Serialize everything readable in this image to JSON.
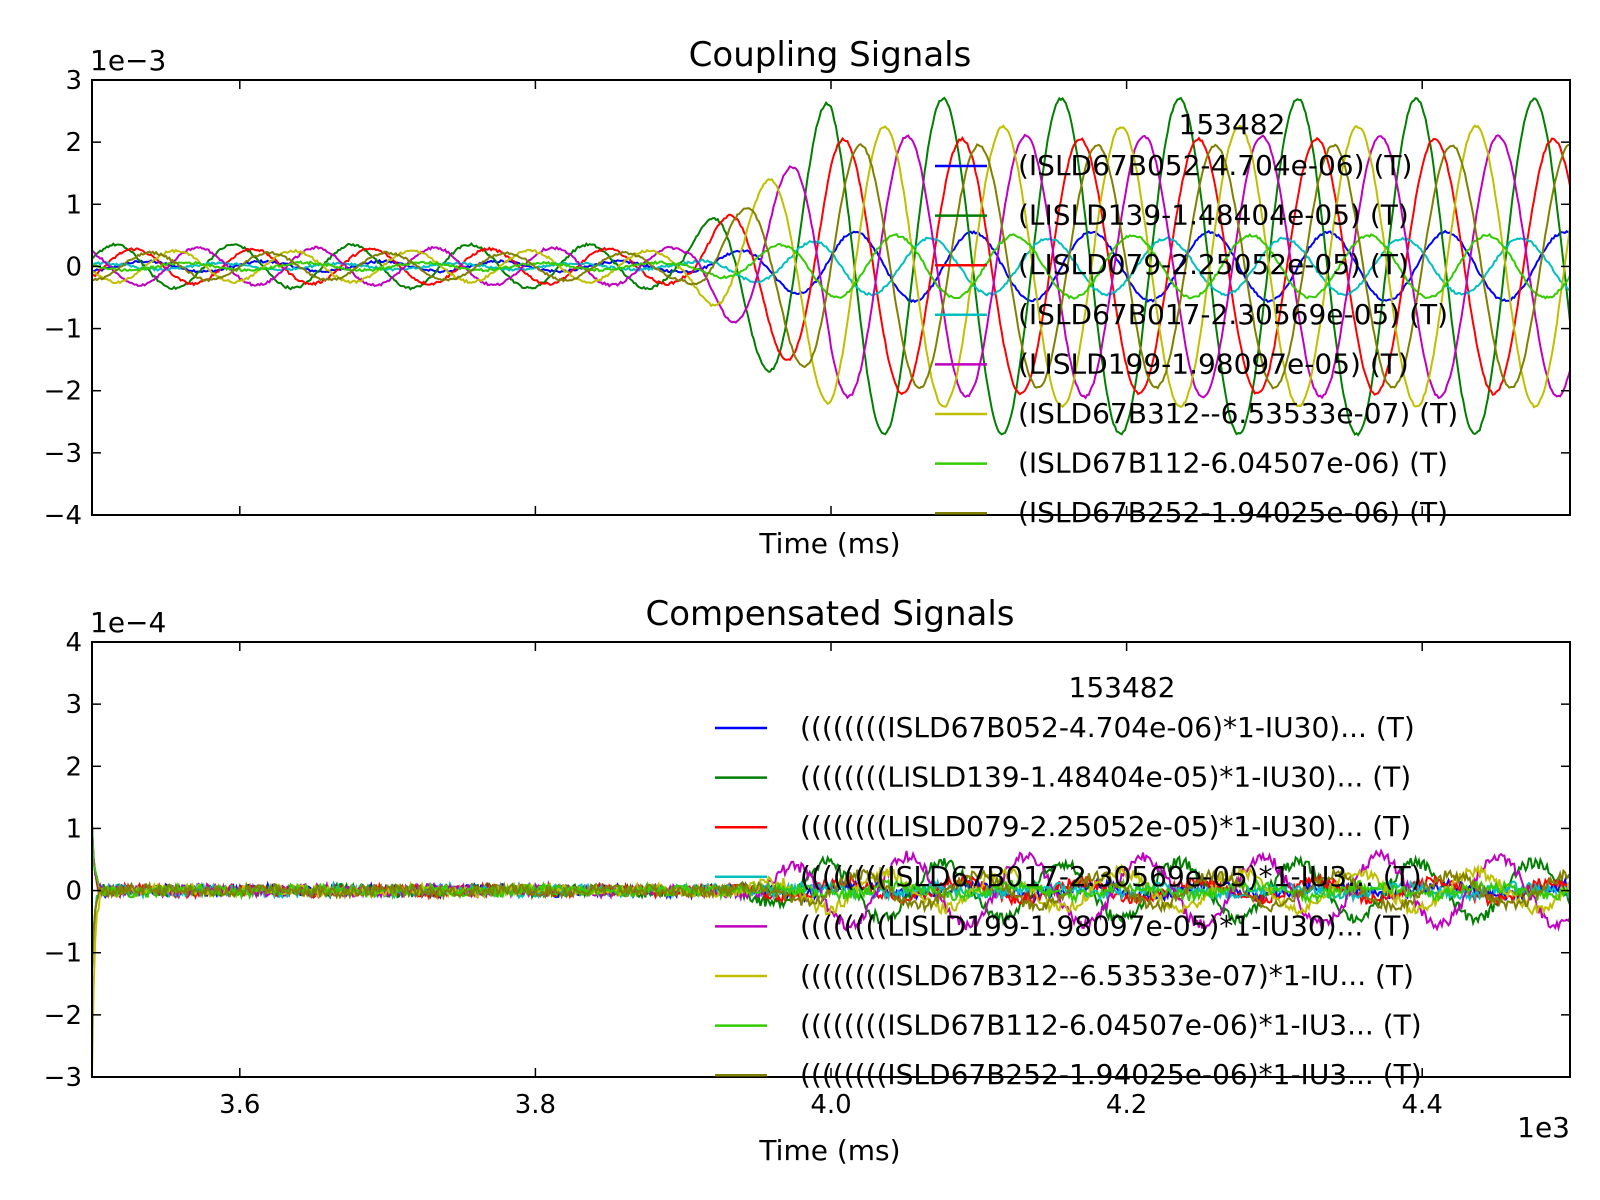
{
  "colors": {
    "blue": "#0000ff",
    "green": "#007f00",
    "red": "#ff0000",
    "cyan": "#00bfbf",
    "magenta": "#bf00bf",
    "yellow": "#bfbf00",
    "lightgreen": "#33cc00",
    "olive": "#808000"
  },
  "chart_data": [
    {
      "type": "line",
      "title": "Coupling Signals",
      "xlabel": "Time (ms)",
      "ylabel": "",
      "y_offset_label": "1e−3",
      "y_scale": 0.001,
      "xlim": [
        3500,
        4500
      ],
      "ylim": [
        -4,
        3
      ],
      "yticks": [
        3,
        2,
        1,
        0,
        -1,
        -2,
        -3,
        -4
      ],
      "ytick_labels": [
        "3",
        "2",
        "1",
        "0",
        "−1",
        "−2",
        "−3",
        "−4"
      ],
      "xticks": [
        3600,
        3800,
        4000,
        4200,
        4400
      ],
      "legend_title": "153482",
      "legend_position": "upper-right",
      "series": [
        {
          "name": "(ISLD67B052-4.704e-06) (T)",
          "color": "blue",
          "amp_pre": 0.08,
          "amp_post": 0.55,
          "period": 80,
          "phase": 0.3
        },
        {
          "name": "(LISLD139-1.48404e-05) (T)",
          "color": "green",
          "amp_pre": 0.35,
          "amp_post": 2.7,
          "period": 80,
          "phase": 1.9
        },
        {
          "name": "(LISLD079-2.25052e-05) (T)",
          "color": "red",
          "amp_pre": 0.28,
          "amp_post": 2.05,
          "period": 80,
          "phase": 0.9
        },
        {
          "name": "(ISLD67B017-2.30569e-05) (T)",
          "color": "cyan",
          "amp_pre": 0.05,
          "amp_post": 0.45,
          "period": 80,
          "phase": 2.6
        },
        {
          "name": "(LISLD199-1.98097e-05) (T)",
          "color": "magenta",
          "amp_pre": 0.3,
          "amp_post": 2.1,
          "period": 80,
          "phase": 3.8
        },
        {
          "name": "(ISLD67B312--6.53533e-07) (T)",
          "color": "yellow",
          "amp_pre": 0.25,
          "amp_post": 2.25,
          "period": 80,
          "phase": 5.0
        },
        {
          "name": "(ISLD67B112-6.04507e-06) (T)",
          "color": "lightgreen",
          "amp_pre": 0.06,
          "amp_post": 0.5,
          "period": 80,
          "phase": 4.4
        },
        {
          "name": "(ISLD67B252-1.94025e-06) (T)",
          "color": "olive",
          "amp_pre": 0.22,
          "amp_post": 1.95,
          "period": 80,
          "phase": 0.0
        }
      ]
    },
    {
      "type": "line",
      "title": "Compensated Signals",
      "xlabel": "Time (ms)",
      "ylabel": "",
      "y_offset_label": "1e−4",
      "x_offset_label": "1e3",
      "y_scale": 0.0001,
      "xlim": [
        3500,
        4500
      ],
      "ylim": [
        -3,
        4
      ],
      "yticks": [
        4,
        3,
        2,
        1,
        0,
        -1,
        -2,
        -3
      ],
      "ytick_labels": [
        "4",
        "3",
        "2",
        "1",
        "0",
        "−1",
        "−2",
        "−3"
      ],
      "xticks": [
        3600,
        3800,
        4000,
        4200,
        4400
      ],
      "xtick_labels": [
        "3.6",
        "3.8",
        "4.0",
        "4.2",
        "4.4"
      ],
      "legend_title": "153482",
      "legend_position": "upper-right",
      "series": [
        {
          "name": "((((((((ISLD67B052-4.704e-06)*1-IU30)... (T)",
          "color": "blue",
          "amp_post": 0.08,
          "period": 80,
          "phase": 0.3
        },
        {
          "name": "((((((((LISLD139-1.48404e-05)*1-IU30)... (T)",
          "color": "green",
          "amp_post": 0.45,
          "period": 80,
          "phase": 1.9
        },
        {
          "name": "((((((((LISLD079-2.25052e-05)*1-IU30)... (T)",
          "color": "red",
          "amp_post": 0.15,
          "period": 80,
          "phase": 0.9
        },
        {
          "name": "((((((((ISLD67B017-2.30569e-05)*1-IU3... (T)",
          "color": "cyan",
          "amp_post": 0.06,
          "period": 80,
          "phase": 2.6
        },
        {
          "name": "((((((((LISLD199-1.98097e-05)*1-IU30)... (T)",
          "color": "magenta",
          "amp_post": 0.55,
          "period": 80,
          "phase": 3.8
        },
        {
          "name": "((((((((ISLD67B312--6.53533e-07)*1-IU... (T)",
          "color": "yellow",
          "amp_post": 0.3,
          "period": 80,
          "phase": 5.0
        },
        {
          "name": "((((((((ISLD67B112-6.04507e-06)*1-IU3... (T)",
          "color": "lightgreen",
          "amp_post": 0.08,
          "period": 80,
          "phase": 4.4
        },
        {
          "name": "((((((((ISLD67B252-1.94025e-06)*1-IU3... (T)",
          "color": "olive",
          "amp_post": 0.25,
          "period": 80,
          "phase": 0.0
        }
      ]
    }
  ]
}
